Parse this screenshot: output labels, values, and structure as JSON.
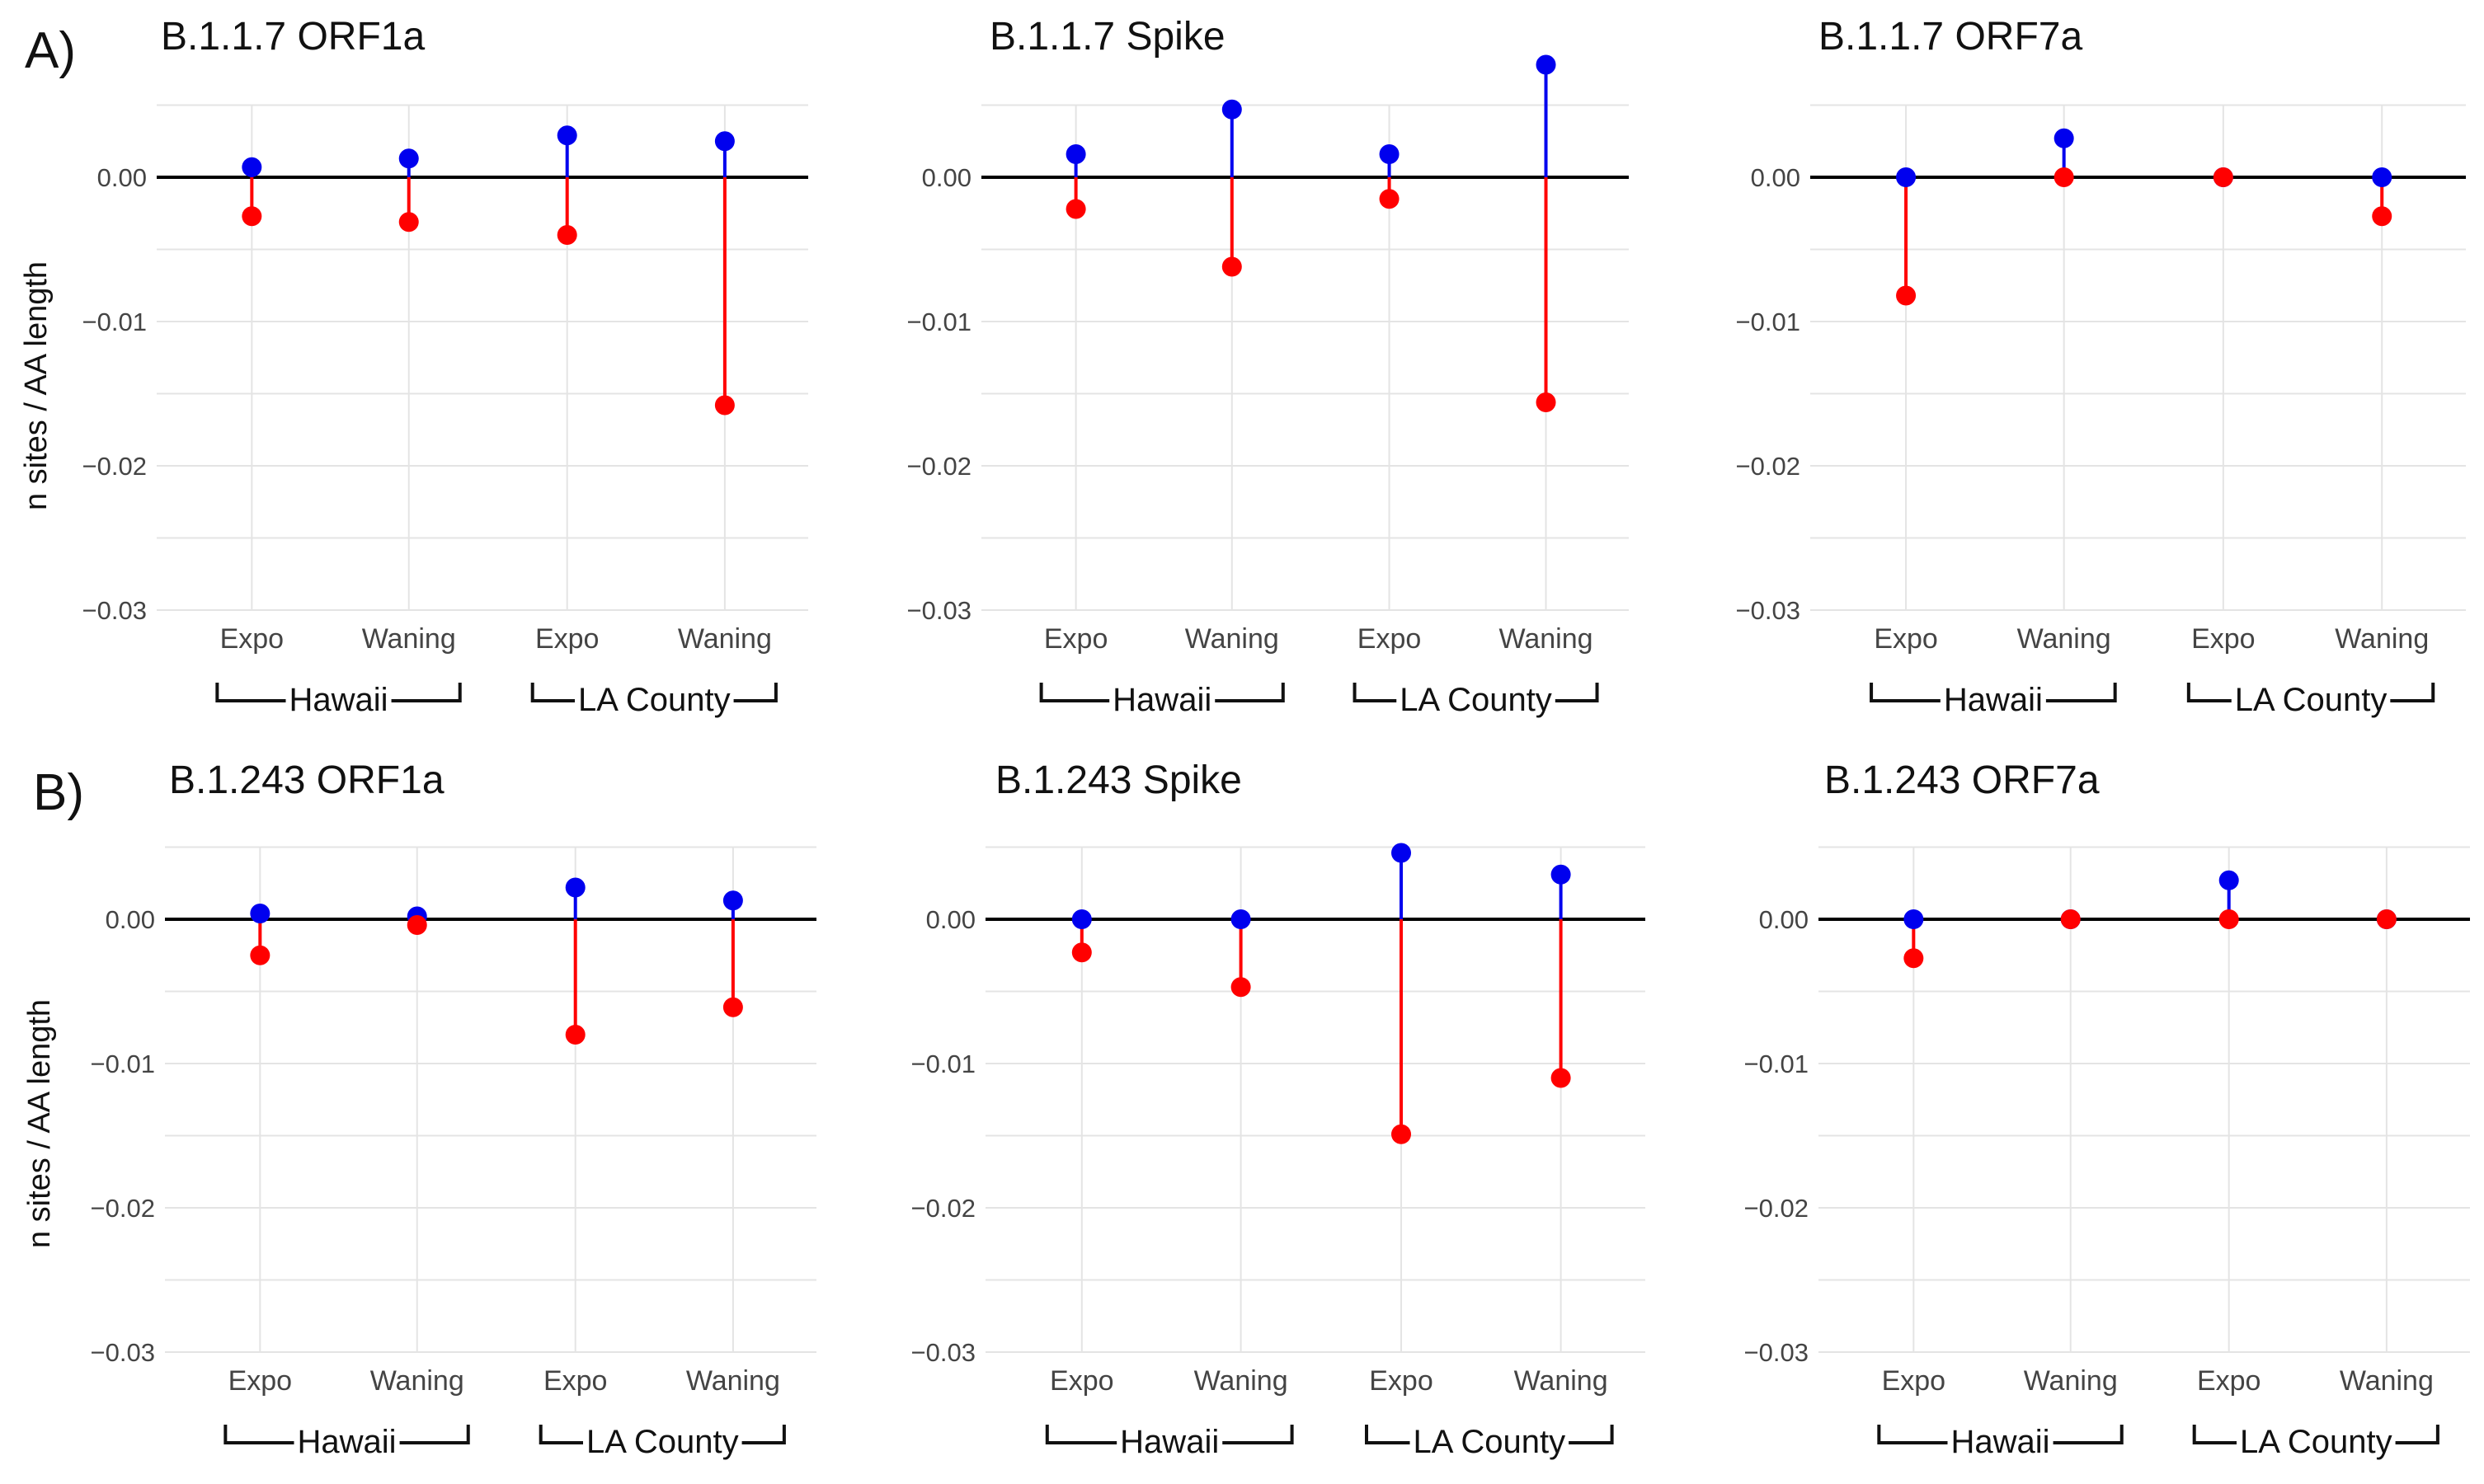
{
  "figure": {
    "panel_labels": [
      "A)",
      "B)"
    ],
    "ylabel": "n sites / AA length",
    "x_ticks": [
      "Expo",
      "Waning",
      "Expo",
      "Waning"
    ],
    "groups": [
      "Hawaii",
      "LA County"
    ],
    "y_ticks": [
      "0.00",
      "−0.01",
      "−0.02",
      "−0.03"
    ],
    "colors": {
      "positive": "#0000ee",
      "negative": "#ff0000"
    }
  },
  "chart_data": [
    {
      "type": "lollipop",
      "title": "B.1.1.7 ORF1a",
      "categories": [
        "Expo",
        "Waning",
        "Expo",
        "Waning"
      ],
      "groups": [
        "Hawaii",
        "Hawaii",
        "LA County",
        "LA County"
      ],
      "ylim": [
        -0.03,
        0.005
      ],
      "grid": true,
      "series": [
        {
          "values": [
            0.0007,
            0.0013,
            0.0029,
            0.0025
          ]
        },
        {
          "values": [
            -0.0027,
            -0.0031,
            -0.004,
            -0.0158
          ]
        }
      ]
    },
    {
      "type": "lollipop",
      "title": "B.1.1.7 Spike",
      "categories": [
        "Expo",
        "Waning",
        "Expo",
        "Waning"
      ],
      "groups": [
        "Hawaii",
        "Hawaii",
        "LA County",
        "LA County"
      ],
      "ylim": [
        -0.03,
        0.008
      ],
      "grid": true,
      "series": [
        {
          "values": [
            0.0016,
            0.0047,
            0.0016,
            0.0078
          ]
        },
        {
          "values": [
            -0.0022,
            -0.0062,
            -0.0015,
            -0.0156
          ]
        }
      ]
    },
    {
      "type": "lollipop",
      "title": "B.1.1.7 ORF7a",
      "categories": [
        "Expo",
        "Waning",
        "Expo",
        "Waning"
      ],
      "groups": [
        "Hawaii",
        "Hawaii",
        "LA County",
        "LA County"
      ],
      "ylim": [
        -0.03,
        0.005
      ],
      "grid": true,
      "series": [
        {
          "values": [
            0.0,
            0.0027,
            0.0,
            0.0
          ]
        },
        {
          "values": [
            -0.0082,
            0.0,
            0.0,
            -0.0027
          ]
        }
      ]
    },
    {
      "type": "lollipop",
      "title": "B.1.243 ORF1a",
      "categories": [
        "Expo",
        "Waning",
        "Expo",
        "Waning"
      ],
      "groups": [
        "Hawaii",
        "Hawaii",
        "LA County",
        "LA County"
      ],
      "ylim": [
        -0.03,
        0.005
      ],
      "grid": true,
      "series": [
        {
          "values": [
            0.0004,
            0.0002,
            0.0022,
            0.0013
          ]
        },
        {
          "values": [
            -0.0025,
            -0.0004,
            -0.008,
            -0.0061
          ]
        }
      ]
    },
    {
      "type": "lollipop",
      "title": "B.1.243 Spike",
      "categories": [
        "Expo",
        "Waning",
        "Expo",
        "Waning"
      ],
      "groups": [
        "Hawaii",
        "Hawaii",
        "LA County",
        "LA County"
      ],
      "ylim": [
        -0.03,
        0.005
      ],
      "grid": true,
      "series": [
        {
          "values": [
            0.0,
            0.0,
            0.0046,
            0.0031
          ]
        },
        {
          "values": [
            -0.0023,
            -0.0047,
            -0.0149,
            -0.011
          ]
        }
      ]
    },
    {
      "type": "lollipop",
      "title": "B.1.243 ORF7a",
      "categories": [
        "Expo",
        "Waning",
        "Expo",
        "Waning"
      ],
      "groups": [
        "Hawaii",
        "Hawaii",
        "LA County",
        "LA County"
      ],
      "ylim": [
        -0.03,
        0.005
      ],
      "grid": true,
      "series": [
        {
          "values": [
            0.0,
            0.0,
            0.0027,
            0.0
          ]
        },
        {
          "values": [
            -0.0027,
            0.0,
            0.0,
            0.0
          ]
        }
      ]
    }
  ]
}
